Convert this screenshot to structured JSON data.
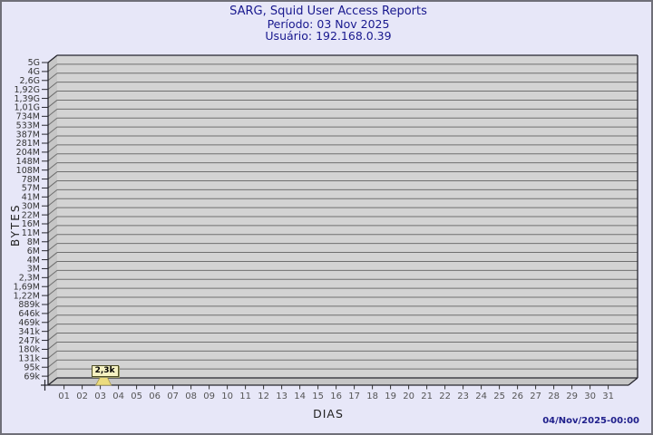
{
  "header": {
    "title": "SARG, Squid User Access Reports",
    "period": "Período: 03 Nov 2025",
    "user": "Usuário: 192.168.0.39"
  },
  "footer": {
    "generated": "04/Nov/2025-00:00"
  },
  "chart_data": {
    "type": "bar",
    "title": "SARG, Squid User Access Reports",
    "subtitle": [
      "Período: 03 Nov 2025",
      "Usuário: 192.168.0.39"
    ],
    "xlabel": "DIAS",
    "ylabel": "BYTES",
    "y_scale": "log",
    "grid": "horizontal",
    "y_ticks": [
      "5G",
      "4G",
      "2,6G",
      "1,92G",
      "1,39G",
      "1,01G",
      "734M",
      "533M",
      "387M",
      "281M",
      "204M",
      "148M",
      "108M",
      "78M",
      "57M",
      "41M",
      "30M",
      "22M",
      "16M",
      "11M",
      "8M",
      "6M",
      "4M",
      "3M",
      "2,3M",
      "1,69M",
      "1,22M",
      "889k",
      "646k",
      "469k",
      "341k",
      "247k",
      "180k",
      "131k",
      "95k",
      "69k"
    ],
    "x_ticks": [
      "01",
      "02",
      "03",
      "04",
      "05",
      "06",
      "07",
      "08",
      "09",
      "10",
      "11",
      "12",
      "13",
      "14",
      "15",
      "16",
      "17",
      "18",
      "19",
      "20",
      "21",
      "22",
      "23",
      "24",
      "25",
      "26",
      "27",
      "28",
      "29",
      "30",
      "31"
    ],
    "points": [
      {
        "day": "03",
        "label": "2,3k",
        "bytes": 2300
      }
    ],
    "colors": {
      "background": "#e7e7f8",
      "back_wall": "#d3d3d3",
      "side_wall": "#c6c6c6",
      "grid_line": "#6f6f6f",
      "edge_line": "#26262e",
      "title_text": "#18188e",
      "y_tick_text": "#333333",
      "x_tick_text": "#555555",
      "flag_fill": "#f6f2c2",
      "flag_border": "#4a4a22",
      "pointer_fill": "#ecdc7e"
    }
  }
}
